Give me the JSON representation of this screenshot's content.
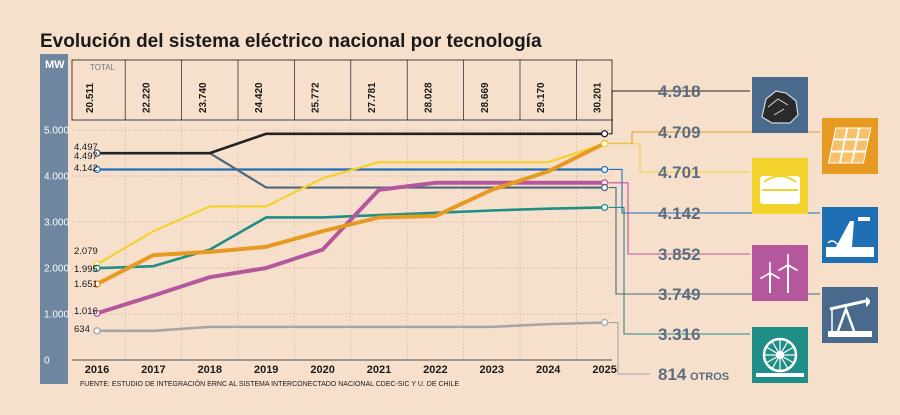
{
  "chart_data": {
    "type": "line",
    "title": "Evolución del sistema eléctrico nacional por tecnología",
    "ylabel": "MW",
    "ylim": [
      0,
      5000
    ],
    "yticks": [
      "0",
      "1.000",
      "2.000",
      "3.000",
      "4.000",
      "5.000"
    ],
    "ytick_values": [
      0,
      1000,
      2000,
      3000,
      4000,
      5000
    ],
    "x": [
      "2016",
      "2017",
      "2018",
      "2019",
      "2020",
      "2021",
      "2022",
      "2023",
      "2024",
      "2025"
    ],
    "totals_label": "TOTAL",
    "totals": [
      "20.511",
      "22.220",
      "23.740",
      "24.420",
      "25.772",
      "27.781",
      "28.028",
      "28.669",
      "29.170",
      "30.201"
    ],
    "source": "FUENTE: ESTUDIO DE INTEGRACIÓN ERNC AL SISTEMA INTERCONECTADO NACIONAL CDEC-SIC Y U. DE CHILE",
    "series": [
      {
        "icon": "coal-icon",
        "color": "#222222",
        "start_label": "4.497",
        "end_label": "4.918",
        "values": [
          4497,
          4497,
          4497,
          4918,
          4918,
          4918,
          4918,
          4918,
          4918,
          4918
        ]
      },
      {
        "icon": "solar-panel-icon",
        "color": "#e69a22",
        "start_label": "1.651",
        "end_label": "4.709",
        "values": [
          1651,
          2280,
          2350,
          2460,
          2800,
          3100,
          3130,
          3700,
          4100,
          4709
        ]
      },
      {
        "icon": "biomass-storage-icon",
        "color": "#f3d22e",
        "start_label": "2.079",
        "end_label": "4.701",
        "values": [
          2079,
          2800,
          3340,
          3340,
          3950,
          4300,
          4300,
          4300,
          4300,
          4701
        ]
      },
      {
        "icon": "hydro-dam-icon",
        "color": "#1f6fb5",
        "start_label": "4.142",
        "end_label": "4.142",
        "values": [
          4142,
          4142,
          4142,
          4142,
          4142,
          4142,
          4142,
          4142,
          4142,
          4142
        ]
      },
      {
        "icon": "wind-turbine-icon",
        "color": "#b4579c",
        "start_label": "1.016",
        "end_label": "3.852",
        "values": [
          1016,
          1400,
          1800,
          2000,
          2400,
          3700,
          3852,
          3852,
          3852,
          3852
        ]
      },
      {
        "icon": "oil-pump-icon",
        "color": "#4d6679",
        "start_label": "4.497",
        "end_label": "3.749",
        "values": [
          4497,
          4497,
          4497,
          3749,
          3749,
          3749,
          3749,
          3749,
          3749,
          3749
        ]
      },
      {
        "icon": "geothermal-turbine-icon",
        "color": "#1f8e87",
        "start_label": "1.995",
        "end_label": "3.316",
        "values": [
          1995,
          2040,
          2400,
          3100,
          3100,
          3150,
          3200,
          3250,
          3290,
          3316
        ]
      },
      {
        "icon": "",
        "color": "#a5a5a5",
        "start_label": "634",
        "end_label": "814",
        "end_suffix": "OTROS",
        "values": [
          634,
          634,
          720,
          720,
          720,
          720,
          720,
          720,
          780,
          814
        ]
      }
    ]
  },
  "colors": {
    "background": "#f6e0cc",
    "axis_band": "#6f86a0",
    "icon_box": "#4a6a8d",
    "icon_box_hydro": "#1f6fb5",
    "icon_box_solar": "#e69a22",
    "icon_box_biomass": "#f3d22e",
    "icon_box_wind": "#b4579c",
    "icon_box_geo": "#1f8e87",
    "value_text": "#5c6d80"
  }
}
